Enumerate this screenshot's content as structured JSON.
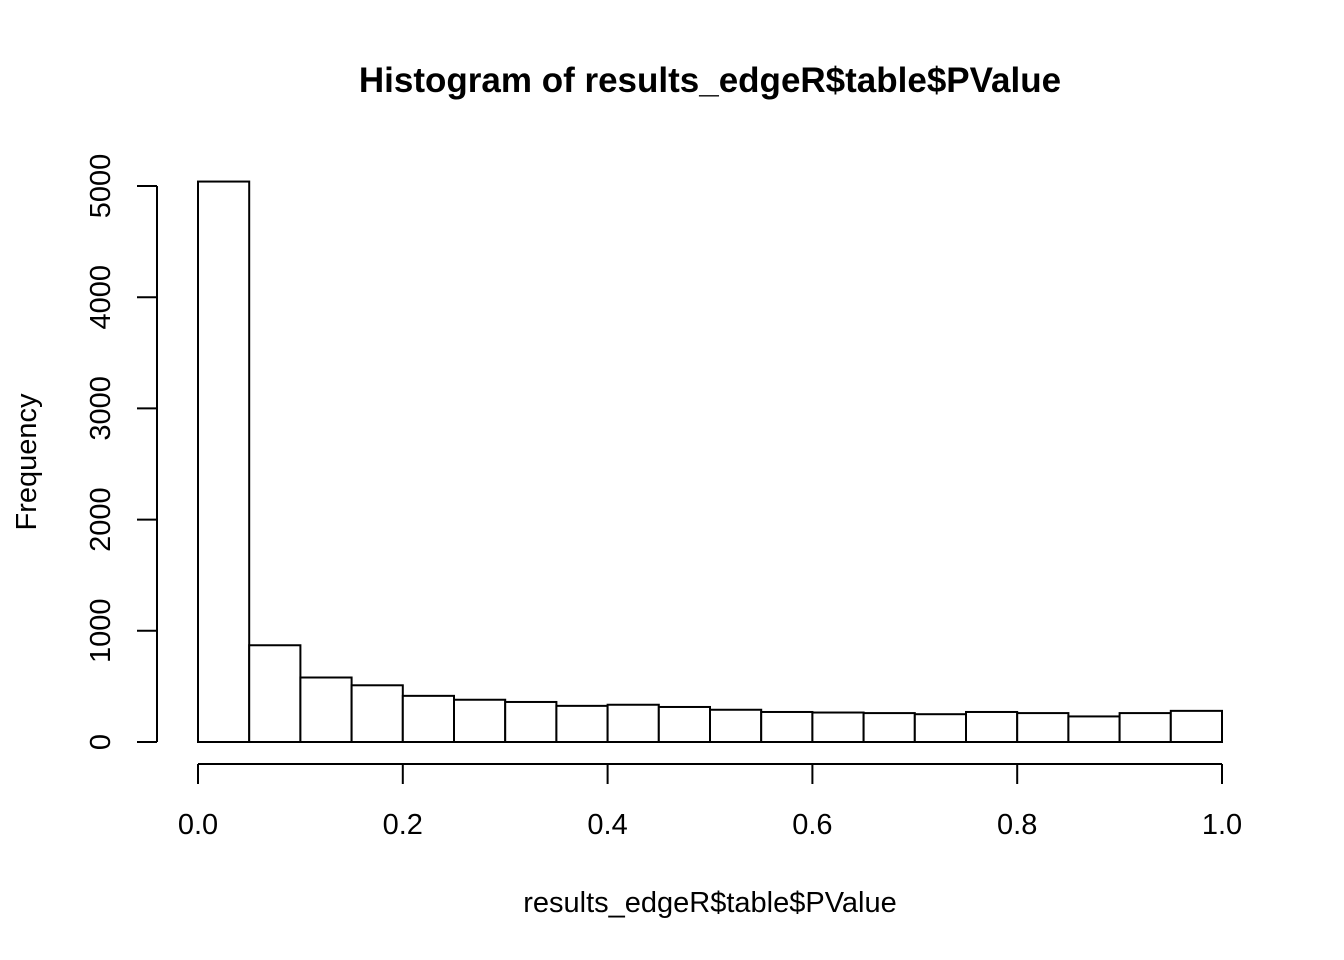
{
  "chart_data": {
    "type": "bar",
    "title": "Histogram of results_edgeR$table$PValue",
    "xlabel": "results_edgeR$table$PValue",
    "ylabel": "Frequency",
    "xlim": [
      0,
      1
    ],
    "ylim": [
      0,
      5000
    ],
    "x_ticks": [
      "0.0",
      "0.2",
      "0.4",
      "0.6",
      "0.8",
      "1.0"
    ],
    "y_ticks": [
      "0",
      "1000",
      "2000",
      "3000",
      "4000",
      "5000"
    ],
    "bin_width": 0.05,
    "bins": [
      {
        "x0": 0.0,
        "x1": 0.05,
        "count": 5040
      },
      {
        "x0": 0.05,
        "x1": 0.1,
        "count": 870
      },
      {
        "x0": 0.1,
        "x1": 0.15,
        "count": 580
      },
      {
        "x0": 0.15,
        "x1": 0.2,
        "count": 510
      },
      {
        "x0": 0.2,
        "x1": 0.25,
        "count": 415
      },
      {
        "x0": 0.25,
        "x1": 0.3,
        "count": 380
      },
      {
        "x0": 0.3,
        "x1": 0.35,
        "count": 360
      },
      {
        "x0": 0.35,
        "x1": 0.4,
        "count": 325
      },
      {
        "x0": 0.4,
        "x1": 0.45,
        "count": 335
      },
      {
        "x0": 0.45,
        "x1": 0.5,
        "count": 315
      },
      {
        "x0": 0.5,
        "x1": 0.55,
        "count": 290
      },
      {
        "x0": 0.55,
        "x1": 0.6,
        "count": 270
      },
      {
        "x0": 0.6,
        "x1": 0.65,
        "count": 265
      },
      {
        "x0": 0.65,
        "x1": 0.7,
        "count": 260
      },
      {
        "x0": 0.7,
        "x1": 0.75,
        "count": 250
      },
      {
        "x0": 0.75,
        "x1": 0.8,
        "count": 270
      },
      {
        "x0": 0.8,
        "x1": 0.85,
        "count": 260
      },
      {
        "x0": 0.85,
        "x1": 0.9,
        "count": 230
      },
      {
        "x0": 0.9,
        "x1": 0.95,
        "count": 260
      },
      {
        "x0": 0.95,
        "x1": 1.0,
        "count": 280
      }
    ],
    "grid": false,
    "colors": {
      "bar_fill": "#ffffff",
      "bar_stroke": "#000000"
    }
  }
}
